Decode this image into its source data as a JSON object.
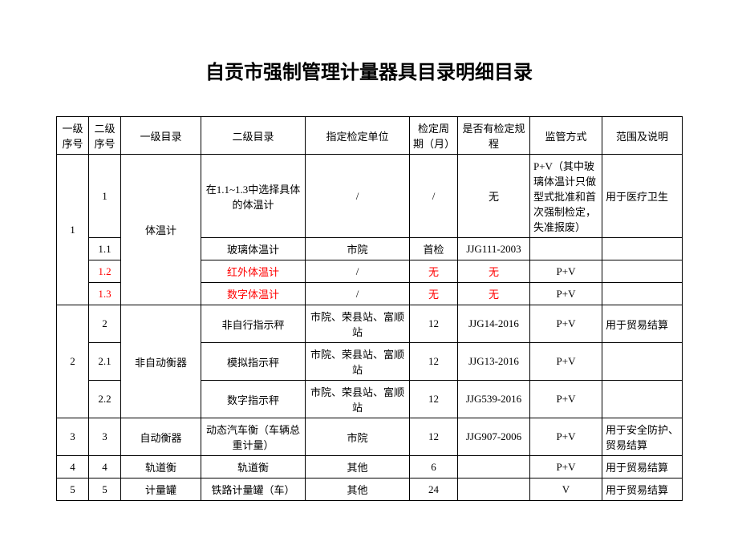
{
  "title": "自贡市强制管理计量器具目录明细目录",
  "headers": {
    "h1": "一级序号",
    "h2": "二级序号",
    "h3": "一级目录",
    "h4": "二级目录",
    "h5": "指定检定单位",
    "h6": "检定周期（月）",
    "h7": "是否有检定规程",
    "h8": "监管方式",
    "h9": "范围及说明"
  },
  "r1": {
    "a": "1",
    "b": "1",
    "c": "体温计",
    "d": "在1.1~1.3中选择具体的体温计",
    "e": "/",
    "f": "/",
    "g": "无",
    "h": "P+V（其中玻璃体温计只做型式批准和首次强制检定，失准报废）",
    "i": "用于医疗卫生"
  },
  "r11": {
    "b": "1.1",
    "d": "玻璃体温计",
    "e": "市院",
    "f": "首检",
    "g": "JJG111-2003",
    "h": "",
    "i": ""
  },
  "r12": {
    "b": "1.2",
    "d": "红外体温计",
    "e": "/",
    "f": "无",
    "g": "无",
    "h": "P+V",
    "i": ""
  },
  "r13": {
    "b": "1.3",
    "d": "数字体温计",
    "e": "/",
    "f": "无",
    "g": "无",
    "h": "P+V",
    "i": ""
  },
  "r2": {
    "a": "2",
    "c": "非自动衡器",
    "s1": {
      "b": "2",
      "d": "非自行指示秤",
      "e": "市院、荣县站、富顺站",
      "f": "12",
      "g": "JJG14-2016",
      "h": "P+V",
      "i": "用于贸易结算"
    },
    "s2": {
      "b": "2.1",
      "d": "模拟指示秤",
      "e": "市院、荣县站、富顺站",
      "f": "12",
      "g": "JJG13-2016",
      "h": "P+V",
      "i": ""
    },
    "s3": {
      "b": "2.2",
      "d": "数字指示秤",
      "e": "市院、荣县站、富顺站",
      "f": "12",
      "g": "JJG539-2016",
      "h": "P+V",
      "i": ""
    }
  },
  "r3": {
    "a": "3",
    "b": "3",
    "c": "自动衡器",
    "d": "动态汽车衡（车辆总重计量）",
    "e": "市院",
    "f": "12",
    "g": "JJG907-2006",
    "h": "P+V",
    "i": "用于安全防护、贸易结算"
  },
  "r4": {
    "a": "4",
    "b": "4",
    "c": "轨道衡",
    "d": "轨道衡",
    "e": "其他",
    "f": "6",
    "g": "",
    "h": "P+V",
    "i": "用于贸易结算"
  },
  "r5": {
    "a": "5",
    "b": "5",
    "c": "计量罐",
    "d": "铁路计量罐（车）",
    "e": "其他",
    "f": "24",
    "g": "",
    "h": "V",
    "i": "用于贸易结算"
  }
}
